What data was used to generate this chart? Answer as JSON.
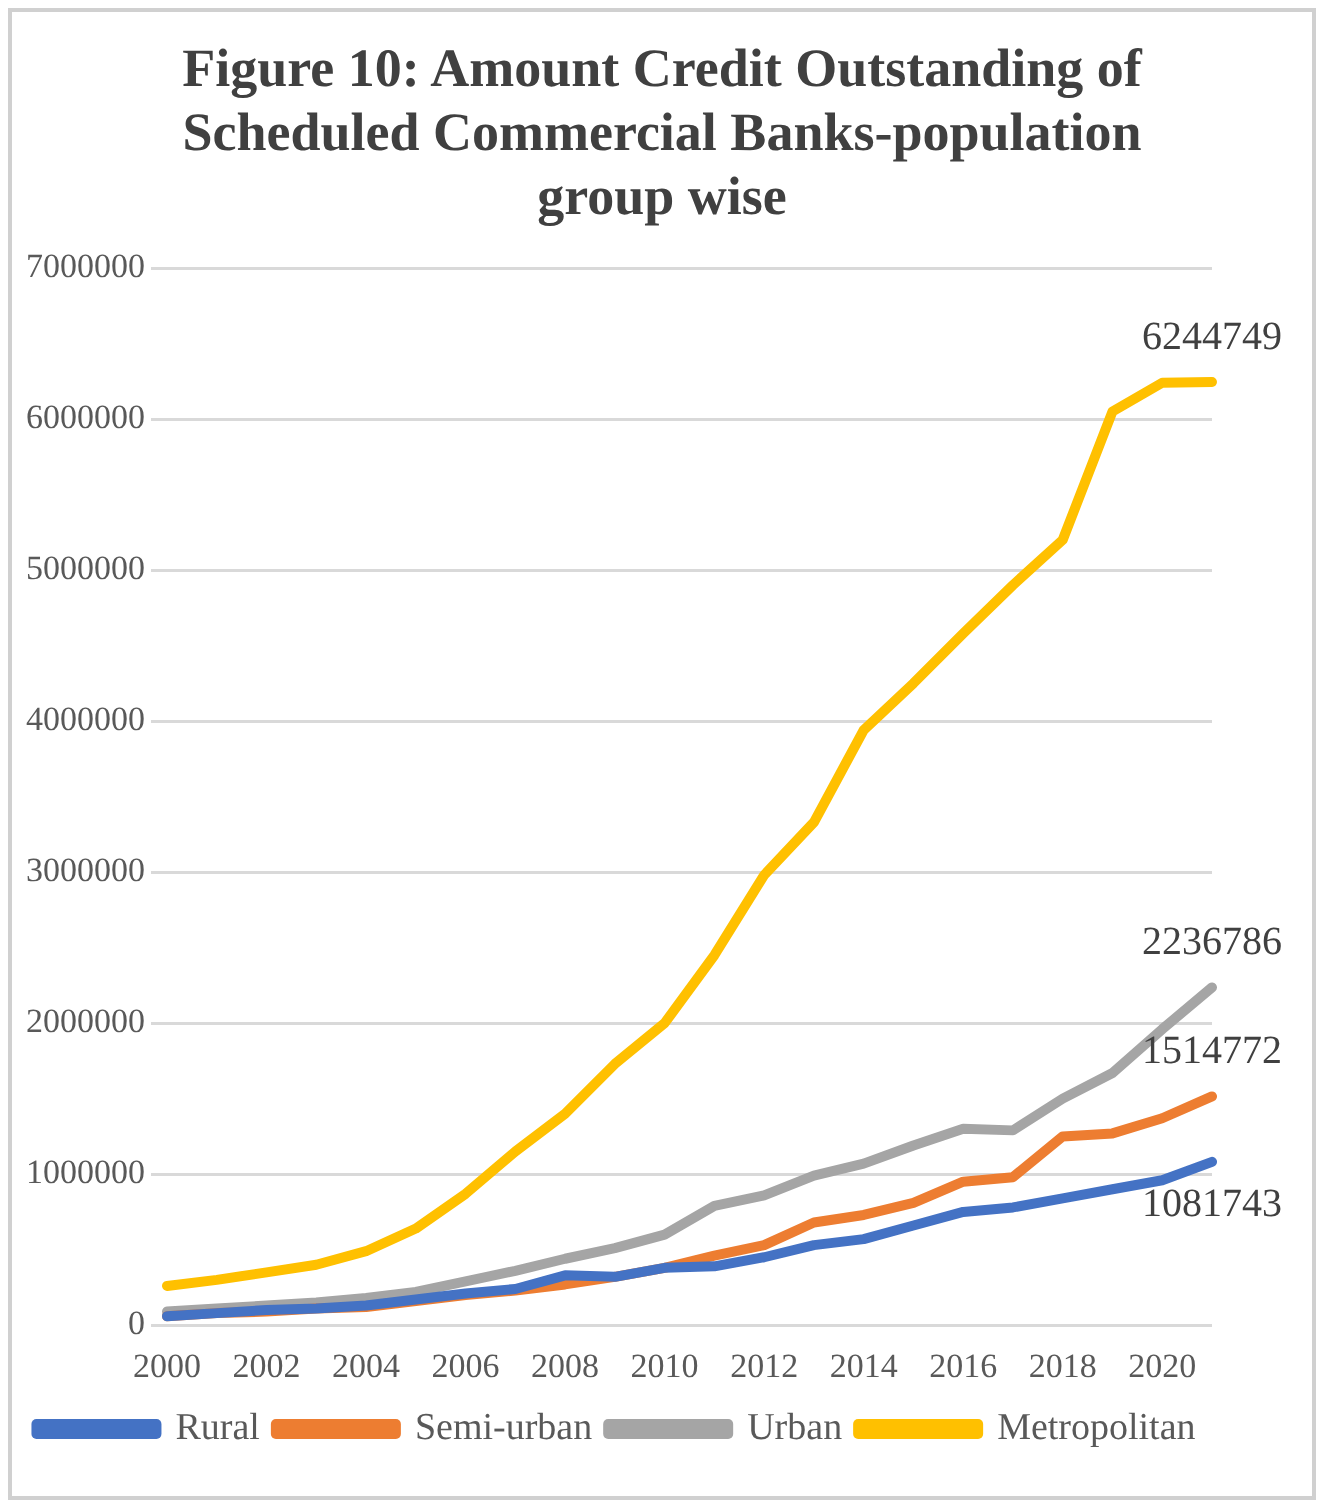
{
  "chart_data": {
    "type": "line",
    "title": "Figure 10: Amount Credit Outstanding of Scheduled Commercial Banks-population group wise",
    "categories": [
      "2000",
      null,
      "2002",
      null,
      "2004",
      null,
      "2006",
      null,
      "2008",
      null,
      "2010",
      null,
      "2012",
      null,
      "2014",
      null,
      "2016",
      null,
      "2018",
      null,
      "2020",
      null
    ],
    "series": [
      {
        "name": "Rural",
        "color": "#4472c4",
        "values": [
          60000,
          80000,
          100000,
          110000,
          130000,
          170000,
          210000,
          240000,
          330000,
          320000,
          380000,
          390000,
          450000,
          530000,
          570000,
          660000,
          750000,
          780000,
          840000,
          900000,
          960000,
          1081743
        ],
        "value_labels": [
          null,
          null,
          null,
          null,
          null,
          null,
          null,
          null,
          null,
          null,
          null,
          null,
          null,
          null,
          null,
          null,
          null,
          null,
          null,
          null,
          null,
          "1081743"
        ]
      },
      {
        "name": "Semi-urban",
        "color": "#ed7d31",
        "values": [
          60000,
          80000,
          90000,
          110000,
          120000,
          160000,
          200000,
          230000,
          270000,
          320000,
          380000,
          460000,
          530000,
          680000,
          730000,
          810000,
          950000,
          980000,
          1250000,
          1270000,
          1370000,
          1514772
        ],
        "value_labels": [
          null,
          null,
          null,
          null,
          null,
          null,
          null,
          null,
          null,
          null,
          null,
          null,
          null,
          null,
          null,
          null,
          null,
          null,
          null,
          null,
          null,
          "1514772"
        ]
      },
      {
        "name": "Urban",
        "color": "#a5a5a5",
        "values": [
          90000,
          110000,
          130000,
          150000,
          180000,
          220000,
          290000,
          360000,
          440000,
          510000,
          600000,
          790000,
          860000,
          990000,
          1070000,
          1190000,
          1300000,
          1290000,
          1500000,
          1670000,
          1960000,
          2236786
        ],
        "value_labels": [
          null,
          null,
          null,
          null,
          null,
          null,
          null,
          null,
          null,
          null,
          null,
          null,
          null,
          null,
          null,
          null,
          null,
          null,
          null,
          null,
          null,
          "2236786"
        ]
      },
      {
        "name": "Metropolitan",
        "color": "#ffc000",
        "values": [
          260000,
          300000,
          350000,
          400000,
          490000,
          640000,
          870000,
          1150000,
          1400000,
          1730000,
          2000000,
          2450000,
          2980000,
          3330000,
          3940000,
          4250000,
          4580000,
          4900000,
          5200000,
          6050000,
          6240000,
          6244749
        ],
        "value_labels": [
          null,
          null,
          null,
          null,
          null,
          null,
          null,
          null,
          null,
          null,
          null,
          null,
          null,
          null,
          null,
          null,
          null,
          null,
          null,
          null,
          null,
          "6244749"
        ]
      }
    ],
    "ylim": [
      0,
      7000000
    ],
    "yticks": [
      0,
      1000000,
      2000000,
      3000000,
      4000000,
      5000000,
      6000000,
      7000000
    ],
    "grid": "y",
    "legend": "bottom",
    "marker": "none",
    "line_style": "solid"
  }
}
